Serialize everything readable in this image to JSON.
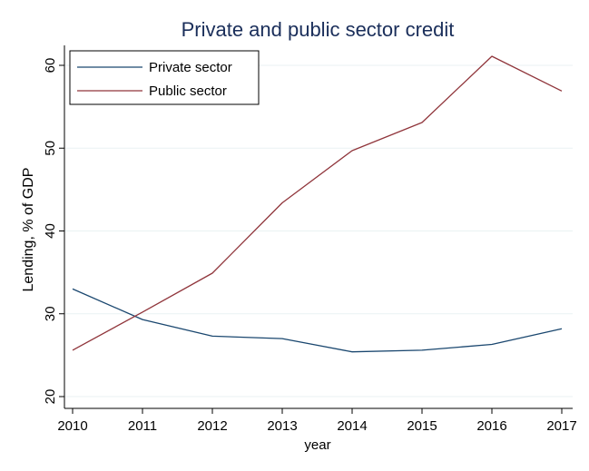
{
  "chart_data": {
    "type": "line",
    "title": "Private and public sector credit",
    "xlabel": "year",
    "ylabel": "Lending, % of GDP",
    "x": [
      2010,
      2011,
      2012,
      2013,
      2014,
      2015,
      2016,
      2017
    ],
    "xticks": [
      "2010",
      "2011",
      "2012",
      "2013",
      "2014",
      "2015",
      "2016",
      "2017"
    ],
    "yticks": [
      "20",
      "30",
      "40",
      "50",
      "60"
    ],
    "ylim": [
      20,
      60
    ],
    "grid": true,
    "legend_position": "top-left",
    "series": [
      {
        "name": "Private sector",
        "color": "#1a476f",
        "values": [
          33.0,
          29.3,
          27.3,
          27.0,
          25.4,
          25.6,
          26.3,
          28.2
        ]
      },
      {
        "name": "Public sector",
        "color": "#90353b",
        "values": [
          25.6,
          30.2,
          34.9,
          43.4,
          49.7,
          53.1,
          61.1,
          56.9
        ]
      }
    ],
    "colors": {
      "title": "#1a2e5a",
      "axis": "#000000",
      "grid": "#eaf2f3"
    }
  }
}
